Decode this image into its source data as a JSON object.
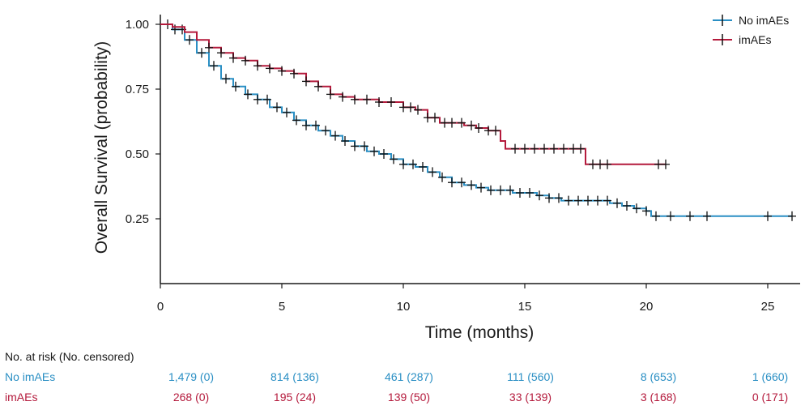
{
  "chart_data": {
    "type": "line",
    "subtype": "kaplan-meier",
    "xlabel": "Time (months)",
    "ylabel": "Overall Survival (probability)",
    "xlim": [
      0,
      26
    ],
    "ylim": [
      0.0,
      1.02
    ],
    "x_ticks": [
      0,
      5,
      10,
      15,
      20,
      25
    ],
    "y_ticks": [
      0.25,
      0.5,
      0.75,
      1.0
    ],
    "y_tick_labels": [
      "0.25",
      "0.50",
      "0.75",
      "1.00"
    ],
    "grid": false,
    "legend_position": "top-right",
    "series": [
      {
        "name": "No imAEs",
        "color": "#2a8fc4",
        "x": [
          0,
          0.5,
          1,
          1.5,
          2,
          2.5,
          3,
          3.5,
          4,
          4.5,
          5,
          5.5,
          6,
          6.5,
          7,
          7.5,
          8,
          8.5,
          9,
          9.5,
          10,
          10.5,
          11,
          11.5,
          12,
          12.5,
          13,
          13.5,
          14,
          14.5,
          15,
          15.5,
          16,
          16.5,
          17,
          17.5,
          18,
          18.5,
          19,
          19.5,
          20,
          20.2,
          21,
          22,
          23,
          24,
          25,
          26
        ],
        "y": [
          1.0,
          0.98,
          0.94,
          0.89,
          0.84,
          0.79,
          0.76,
          0.73,
          0.71,
          0.68,
          0.66,
          0.63,
          0.61,
          0.59,
          0.57,
          0.55,
          0.53,
          0.51,
          0.5,
          0.48,
          0.46,
          0.45,
          0.43,
          0.41,
          0.39,
          0.38,
          0.37,
          0.36,
          0.36,
          0.35,
          0.35,
          0.34,
          0.33,
          0.32,
          0.32,
          0.32,
          0.32,
          0.31,
          0.3,
          0.29,
          0.28,
          0.26,
          0.26,
          0.26,
          0.26,
          0.26,
          0.26,
          0.26
        ],
        "censor_x": [
          0.3,
          0.6,
          0.9,
          1.2,
          1.7,
          2.2,
          2.7,
          3.1,
          3.6,
          4.0,
          4.4,
          4.8,
          5.2,
          5.6,
          6.0,
          6.4,
          6.8,
          7.2,
          7.6,
          8.0,
          8.4,
          8.8,
          9.2,
          9.6,
          10.0,
          10.4,
          10.8,
          11.2,
          11.6,
          12.0,
          12.4,
          12.8,
          13.2,
          13.6,
          14.0,
          14.4,
          14.8,
          15.2,
          15.6,
          16.0,
          16.4,
          16.8,
          17.2,
          17.6,
          18.0,
          18.4,
          18.8,
          19.2,
          19.6,
          20.0,
          20.4,
          21.0,
          21.8,
          22.5,
          25.0,
          26.0
        ]
      },
      {
        "name": "imAEs",
        "color": "#b41a3c",
        "x": [
          0,
          0.5,
          1,
          1.5,
          2,
          2.5,
          3,
          3.5,
          4,
          4.5,
          5,
          5.5,
          6,
          6.5,
          7,
          7.5,
          8,
          8.5,
          9,
          9.5,
          10,
          10.5,
          11,
          11.5,
          12,
          12.5,
          13,
          13.5,
          14,
          14.2,
          15,
          16,
          17,
          17.4,
          17.5,
          18,
          19,
          20,
          20.8
        ],
        "y": [
          1.0,
          0.99,
          0.97,
          0.94,
          0.91,
          0.89,
          0.87,
          0.86,
          0.84,
          0.83,
          0.82,
          0.81,
          0.78,
          0.76,
          0.73,
          0.72,
          0.71,
          0.71,
          0.7,
          0.7,
          0.68,
          0.67,
          0.64,
          0.62,
          0.62,
          0.61,
          0.6,
          0.59,
          0.55,
          0.52,
          0.52,
          0.52,
          0.52,
          0.52,
          0.46,
          0.46,
          0.46,
          0.46,
          0.46
        ],
        "censor_x": [
          2.0,
          2.5,
          3.0,
          3.5,
          4.0,
          4.5,
          5.0,
          5.5,
          6.0,
          6.5,
          7.0,
          7.5,
          8.0,
          8.5,
          9.0,
          9.5,
          10.0,
          10.3,
          10.6,
          11.0,
          11.3,
          11.7,
          12.0,
          12.4,
          12.8,
          13.1,
          13.5,
          13.8,
          14.6,
          15.0,
          15.4,
          15.8,
          16.2,
          16.6,
          17.0,
          17.3,
          17.8,
          18.1,
          18.4,
          20.5,
          20.8
        ]
      }
    ]
  },
  "risk_table": {
    "title": "No. at risk (No. censored)",
    "rows": [
      {
        "label": "No imAEs",
        "color": "#2a8fc4",
        "values": [
          "1,479 (0)",
          "814 (136)",
          "461 (287)",
          "111 (560)",
          "8 (653)",
          "1 (660)"
        ]
      },
      {
        "label": "imAEs",
        "color": "#b41a3c",
        "values": [
          "268 (0)",
          "195 (24)",
          "139 (50)",
          "33 (139)",
          "3 (168)",
          "0 (171)"
        ]
      }
    ]
  }
}
